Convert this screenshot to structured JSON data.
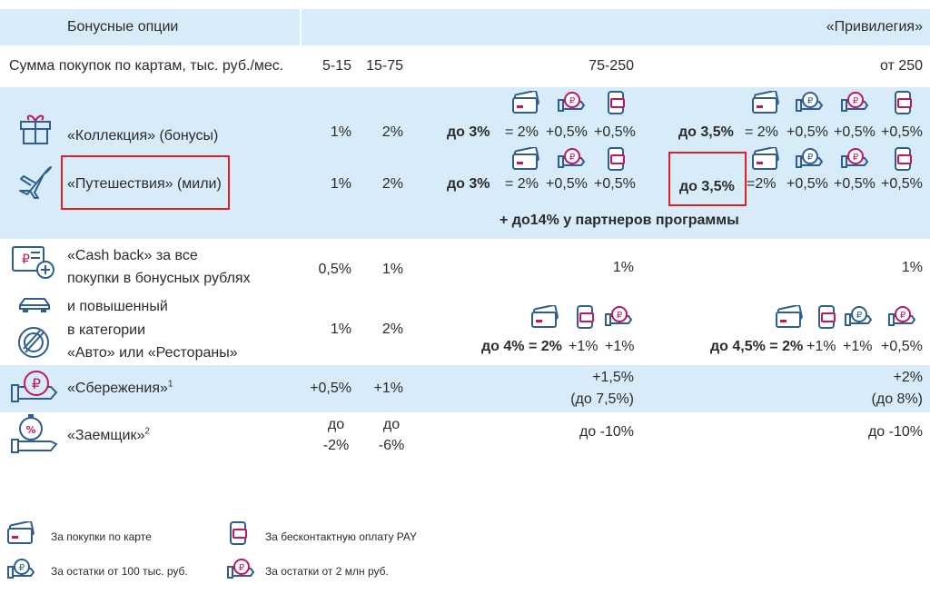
{
  "header": {
    "left": "Бонусные опции",
    "right": "«Привилегия»"
  },
  "sums": {
    "label": "Сумма покупок по картам, тыс. руб./мес.",
    "c1": "5-15",
    "c2": "15-75",
    "c3": "75-250",
    "c4": "от 250"
  },
  "collection": {
    "label": "«Коллекция» (бонусы)",
    "v1": "1%",
    "v2": "2%",
    "do1": "до 3%",
    "a": "= 2%",
    "b": "+0,5%",
    "c": "+0,5%",
    "do2": "до 3,5%",
    "d": "= 2%",
    "e": "+0,5%",
    "f": "+0,5%",
    "g": "+0,5%"
  },
  "travel": {
    "label": "«Путешествия» (мили)",
    "v1": "1%",
    "v2": "2%",
    "do1": "до 3%",
    "a": "= 2%",
    "b": "+0,5%",
    "c": "+0,5%",
    "do2": "до 3,5%",
    "d": "=2%",
    "e": "+0,5%",
    "f": "+0,5%",
    "g": "+0,5%"
  },
  "partners": "+ до14% у партнеров программы",
  "cashback": {
    "line1": "«Cash back» за все",
    "line2": "покупки в бонусных рублях",
    "v1": "0,5%",
    "v2": "1%",
    "v3": "1%",
    "v4": "1%"
  },
  "category": {
    "line1": "и повышенный",
    "line2": "в категории",
    "line3": "«Авто» или «Рестораны»",
    "v1": "1%",
    "v2": "2%",
    "do1": "до 4% = 2%",
    "a": "+1%",
    "b": "+1%",
    "do2": "до 4,5% = 2%",
    "c": "+1%",
    "d": "+1%",
    "e": "+0,5%"
  },
  "savings": {
    "label": "«Сбережения»",
    "sup": "1",
    "v1": "+0,5%",
    "v2": "+1%",
    "v3a": "+1,5%",
    "v3b": "(до 7,5%)",
    "v4a": "+2%",
    "v4b": "(до 8%)"
  },
  "borrower": {
    "label": "«Заемщик»",
    "sup": "2",
    "v1a": "до",
    "v1b": "-2%",
    "v2a": "до",
    "v2b": "-6%",
    "v3": "до -10%",
    "v4": "до -10%"
  },
  "legend": {
    "card": "За покупки по карте",
    "pay": "За бесконтактную оплату PAY",
    "rest100": "За остатки от 100 тыс. руб.",
    "rest2m": "За остатки от 2 млн руб."
  },
  "colors": {
    "band": "#d7ecf8",
    "accent": "#c0185f",
    "icon": "#2f5d91",
    "highlight": "#e31e24"
  }
}
